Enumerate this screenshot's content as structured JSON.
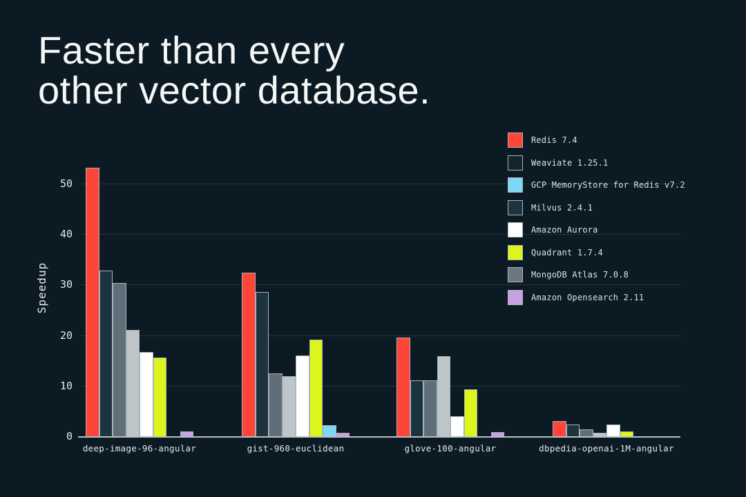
{
  "page": {
    "background": "#0B1A23"
  },
  "title": {
    "line1": "Faster than every",
    "line2": "other vector database."
  },
  "chart_data": {
    "type": "bar",
    "title": "Faster than every other vector database.",
    "xlabel": "",
    "ylabel": "Speedup",
    "ylim": [
      0,
      55
    ],
    "yticks": [
      0,
      10,
      20,
      30,
      40,
      50
    ],
    "grid": "horizontal-only",
    "legend_position": "upper-right",
    "categories": [
      "deep-image-96-angular",
      "gist-960-euclidean",
      "glove-100-angular",
      "dbpedia-openai-1M-angular"
    ],
    "series": [
      {
        "name": "Redis 7.4",
        "color": "#FF4438",
        "values": [
          53.2,
          32.4,
          19.6,
          3.0
        ]
      },
      {
        "name": "Milvus 2.4.1",
        "color": "#1C3340",
        "values": [
          32.8,
          28.5,
          11.1,
          2.3
        ]
      },
      {
        "name": "MongoDB Atlas 7.0.8",
        "color": "#5F6E78",
        "values": [
          30.3,
          12.4,
          11.1,
          1.4
        ]
      },
      {
        "name": "Weaviate 1.25.1",
        "color": "#BFC6CA",
        "values": [
          21.0,
          11.9,
          15.9,
          0.7
        ]
      },
      {
        "name": "Amazon Aurora",
        "color": "#FFFFFF",
        "values": [
          16.7,
          16.0,
          3.9,
          2.3
        ]
      },
      {
        "name": "Quadrant 1.7.4",
        "color": "#DCF61C",
        "values": [
          15.6,
          19.1,
          9.3,
          0.9
        ]
      },
      {
        "name": "GCP MemoryStore for Redis v7.2",
        "color": "#7FD7F8",
        "values": [
          0,
          2.2,
          0,
          0
        ]
      },
      {
        "name": "Amazon Opensearch 2.11",
        "color": "#C9A0E5",
        "values": [
          0.95,
          0.7,
          0.8,
          0
        ]
      }
    ],
    "bar_outline": "#A9B4BA"
  },
  "legend": {
    "items": [
      {
        "label": "Redis 7.4",
        "swatch": "#FF4438"
      },
      {
        "label": "Weaviate 1.25.1",
        "swatch": "#13242E"
      },
      {
        "label": "GCP MemoryStore for Redis v7.2",
        "swatch": "#7FD7F8"
      },
      {
        "label": "Milvus 2.4.1",
        "swatch": "#1C3340"
      },
      {
        "label": "Amazon Aurora",
        "swatch": "#FFFFFF"
      },
      {
        "label": "Quadrant 1.7.4",
        "swatch": "#DCF61C"
      },
      {
        "label": "MongoDB Atlas 7.0.8",
        "swatch": "#6B7880"
      },
      {
        "label": "Amazon Opensearch 2.11",
        "swatch": "#C9A0E5"
      }
    ]
  }
}
